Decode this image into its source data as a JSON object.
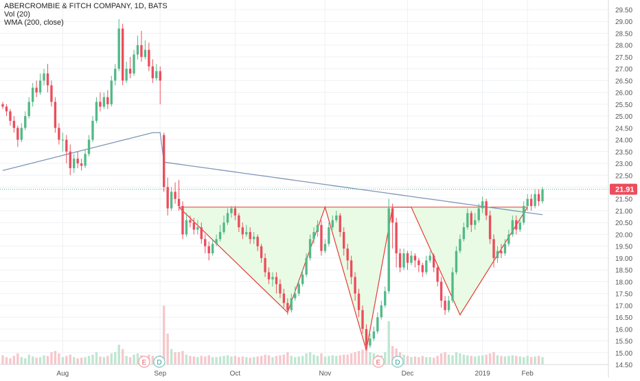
{
  "legend": {
    "title": "ABERCROMBIE & FITCH COMPANY, 1D, BATS",
    "vol": "Vol (20)",
    "wma": "WMA (200, close)"
  },
  "colors": {
    "up": "#53b987",
    "down": "#eb4d5c",
    "wma": "#7f95b8",
    "pattern_line": "#e53935",
    "pattern_fill": "#e9fbe4",
    "price_line": "#3cb8a8",
    "price_badge": "#eb4d5c",
    "grid": "#eef0f3",
    "axis_text": "#555555"
  },
  "price_label": "21.91",
  "chart_data": {
    "type": "candlestick",
    "title": "ABERCROMBIE & FITCH COMPANY, 1D, BATS",
    "x_labels": [
      "Aug",
      "Sep",
      "Oct",
      "Nov",
      "Dec",
      "2019",
      "Feb"
    ],
    "y_ticks": [
      "29.50",
      "29.00",
      "28.50",
      "28.00",
      "27.50",
      "27.00",
      "26.50",
      "26.00",
      "25.50",
      "25.00",
      "24.50",
      "24.00",
      "23.50",
      "23.00",
      "22.50",
      "22.00",
      "21.50",
      "21.00",
      "20.50",
      "20.00",
      "19.50",
      "19.00",
      "18.50",
      "18.00",
      "17.50",
      "17.00",
      "16.50",
      "16.00",
      "15.50",
      "15.00",
      "14.50"
    ],
    "ylim": [
      14.5,
      29.5
    ],
    "grid": true,
    "last_price": 21.91,
    "markers": [
      "E",
      "D",
      "E",
      "D"
    ],
    "candles": [
      [
        25.5,
        25.4,
        25.6,
        25.3
      ],
      [
        25.4,
        25.2,
        25.5,
        25.0
      ],
      [
        25.2,
        24.8,
        25.3,
        24.6
      ],
      [
        24.8,
        24.5,
        25.0,
        24.3
      ],
      [
        24.5,
        24.0,
        24.6,
        23.7
      ],
      [
        24.0,
        24.5,
        24.7,
        23.9
      ],
      [
        24.5,
        25.0,
        25.2,
        24.4
      ],
      [
        25.0,
        25.6,
        25.8,
        24.9
      ],
      [
        25.6,
        26.2,
        26.4,
        25.4
      ],
      [
        26.2,
        26.0,
        26.5,
        25.8
      ],
      [
        26.0,
        26.5,
        26.8,
        25.9
      ],
      [
        26.5,
        26.8,
        27.0,
        26.3
      ],
      [
        26.8,
        26.3,
        27.2,
        26.0
      ],
      [
        26.3,
        25.6,
        26.5,
        25.4
      ],
      [
        25.6,
        24.5,
        25.8,
        24.3
      ],
      [
        24.5,
        24.0,
        24.7,
        23.8
      ],
      [
        24.0,
        24.0,
        24.3,
        23.5
      ],
      [
        24.0,
        23.5,
        24.2,
        23.0
      ],
      [
        23.5,
        22.8,
        23.8,
        22.5
      ],
      [
        22.8,
        23.2,
        23.4,
        22.6
      ],
      [
        23.2,
        23.0,
        23.5,
        22.8
      ],
      [
        23.0,
        22.9,
        23.2,
        22.7
      ],
      [
        22.9,
        23.4,
        23.6,
        22.8
      ],
      [
        23.4,
        24.0,
        24.2,
        23.3
      ],
      [
        24.0,
        24.8,
        25.0,
        23.9
      ],
      [
        24.8,
        25.6,
        25.8,
        24.7
      ],
      [
        25.6,
        25.4,
        26.0,
        25.2
      ],
      [
        25.4,
        25.8,
        26.0,
        25.3
      ],
      [
        25.8,
        25.5,
        26.1,
        25.3
      ],
      [
        25.5,
        26.5,
        26.7,
        25.4
      ],
      [
        26.5,
        27.0,
        27.2,
        26.3
      ],
      [
        27.0,
        28.7,
        29.1,
        26.9
      ],
      [
        28.7,
        26.5,
        28.9,
        26.3
      ],
      [
        26.5,
        27.0,
        27.3,
        26.4
      ],
      [
        27.0,
        26.8,
        27.5,
        26.6
      ],
      [
        26.8,
        27.6,
        27.8,
        26.7
      ],
      [
        27.6,
        28.0,
        28.4,
        27.4
      ],
      [
        28.0,
        27.5,
        28.6,
        27.3
      ],
      [
        27.5,
        27.8,
        28.2,
        27.4
      ],
      [
        27.8,
        27.1,
        28.1,
        26.9
      ],
      [
        27.1,
        26.6,
        27.4,
        26.4
      ],
      [
        26.6,
        26.9,
        27.2,
        26.5
      ],
      [
        26.9,
        26.5,
        27.1,
        25.5
      ],
      [
        24.2,
        22.0,
        24.3,
        21.8
      ],
      [
        22.0,
        21.1,
        22.4,
        20.8
      ],
      [
        21.1,
        21.8,
        22.0,
        21.0
      ],
      [
        21.8,
        21.5,
        22.2,
        21.3
      ],
      [
        21.5,
        21.2,
        22.3,
        21.0
      ],
      [
        21.2,
        20.0,
        21.4,
        19.8
      ],
      [
        20.0,
        20.6,
        20.9,
        19.9
      ],
      [
        20.6,
        20.5,
        20.8,
        20.3
      ],
      [
        20.5,
        20.2,
        20.7,
        20.0
      ],
      [
        20.2,
        20.3,
        20.6,
        20.0
      ],
      [
        20.3,
        19.8,
        20.5,
        19.6
      ],
      [
        19.8,
        19.5,
        20.0,
        19.2
      ],
      [
        19.5,
        19.2,
        19.7,
        18.9
      ],
      [
        19.2,
        19.6,
        19.8,
        19.1
      ],
      [
        19.6,
        19.8,
        20.0,
        19.5
      ],
      [
        19.8,
        20.1,
        20.4,
        19.7
      ],
      [
        20.1,
        20.5,
        20.8,
        20.0
      ],
      [
        20.5,
        20.9,
        21.1,
        20.4
      ],
      [
        20.9,
        21.1,
        21.2,
        20.7
      ],
      [
        21.1,
        20.8,
        21.2,
        20.6
      ],
      [
        20.8,
        20.3,
        20.9,
        20.1
      ],
      [
        20.3,
        20.0,
        20.5,
        19.8
      ],
      [
        20.0,
        20.1,
        20.4,
        19.9
      ],
      [
        20.1,
        19.8,
        20.3,
        19.6
      ],
      [
        19.8,
        19.9,
        20.1,
        19.6
      ],
      [
        19.9,
        19.5,
        20.0,
        19.3
      ],
      [
        19.5,
        19.0,
        19.6,
        18.8
      ],
      [
        19.0,
        18.4,
        19.2,
        18.2
      ],
      [
        18.4,
        18.1,
        18.6,
        17.9
      ],
      [
        18.1,
        18.2,
        18.4,
        17.8
      ],
      [
        18.2,
        17.9,
        18.4,
        17.5
      ],
      [
        17.9,
        17.5,
        18.1,
        17.3
      ],
      [
        17.5,
        17.1,
        17.7,
        16.9
      ],
      [
        17.1,
        16.8,
        17.3,
        16.6
      ],
      [
        16.8,
        17.3,
        17.5,
        16.7
      ],
      [
        17.3,
        17.5,
        17.8,
        17.2
      ],
      [
        17.5,
        17.9,
        18.1,
        17.4
      ],
      [
        17.9,
        18.3,
        18.5,
        17.8
      ],
      [
        18.3,
        19.0,
        19.2,
        18.2
      ],
      [
        19.0,
        19.8,
        20.0,
        18.9
      ],
      [
        19.8,
        20.1,
        20.3,
        19.6
      ],
      [
        20.1,
        20.4,
        20.6,
        19.9
      ],
      [
        20.4,
        19.3,
        20.6,
        19.1
      ],
      [
        19.3,
        19.6,
        19.8,
        19.2
      ],
      [
        19.6,
        20.3,
        20.5,
        19.5
      ],
      [
        20.3,
        20.6,
        20.8,
        20.2
      ],
      [
        20.6,
        20.8,
        21.0,
        20.5
      ],
      [
        20.8,
        20.1,
        20.9,
        19.9
      ],
      [
        20.1,
        19.4,
        20.3,
        19.1
      ],
      [
        19.4,
        18.9,
        19.6,
        18.5
      ],
      [
        18.9,
        18.2,
        19.1,
        17.9
      ],
      [
        18.2,
        17.5,
        18.4,
        17.2
      ],
      [
        17.5,
        16.8,
        17.7,
        16.5
      ],
      [
        16.8,
        16.0,
        17.0,
        15.8
      ],
      [
        16.0,
        15.3,
        16.2,
        15.1
      ],
      [
        15.3,
        15.6,
        15.8,
        15.2
      ],
      [
        15.6,
        15.9,
        16.1,
        15.5
      ],
      [
        15.9,
        16.5,
        16.7,
        15.8
      ],
      [
        16.5,
        17.0,
        17.2,
        16.4
      ],
      [
        17.0,
        17.6,
        17.8,
        16.9
      ],
      [
        17.6,
        21.1,
        21.5,
        17.5
      ],
      [
        21.1,
        20.5,
        21.3,
        19.4
      ],
      [
        20.5,
        19.2,
        20.7,
        18.6
      ],
      [
        19.2,
        18.6,
        19.4,
        18.4
      ],
      [
        18.6,
        19.2,
        19.4,
        18.5
      ],
      [
        19.2,
        18.8,
        19.3,
        18.5
      ],
      [
        18.8,
        19.1,
        19.3,
        18.7
      ],
      [
        19.1,
        18.9,
        19.2,
        18.6
      ],
      [
        18.9,
        18.7,
        19.0,
        18.4
      ],
      [
        18.7,
        18.4,
        18.8,
        18.2
      ],
      [
        18.4,
        18.9,
        19.1,
        18.3
      ],
      [
        18.9,
        19.1,
        19.3,
        18.8
      ],
      [
        19.1,
        18.6,
        19.2,
        18.4
      ],
      [
        18.6,
        18.0,
        18.7,
        17.8
      ],
      [
        18.0,
        17.2,
        18.2,
        16.9
      ],
      [
        17.2,
        16.8,
        17.4,
        16.6
      ],
      [
        16.8,
        17.2,
        17.4,
        16.7
      ],
      [
        17.2,
        18.4,
        18.6,
        17.1
      ],
      [
        18.4,
        19.3,
        19.5,
        18.3
      ],
      [
        19.3,
        19.8,
        20.0,
        19.2
      ],
      [
        19.8,
        20.3,
        20.5,
        19.7
      ],
      [
        20.3,
        20.9,
        21.1,
        20.2
      ],
      [
        20.9,
        20.4,
        21.0,
        20.1
      ],
      [
        20.4,
        20.6,
        20.9,
        20.2
      ],
      [
        20.6,
        21.1,
        21.3,
        20.5
      ],
      [
        21.1,
        21.4,
        21.6,
        20.9
      ],
      [
        21.4,
        20.8,
        21.5,
        20.6
      ],
      [
        20.8,
        19.8,
        21.0,
        19.6
      ],
      [
        19.8,
        19.0,
        20.0,
        18.6
      ],
      [
        19.0,
        19.3,
        19.5,
        18.8
      ],
      [
        19.3,
        19.2,
        19.6,
        19.0
      ],
      [
        19.2,
        19.6,
        19.8,
        19.1
      ],
      [
        19.6,
        20.0,
        20.2,
        19.5
      ],
      [
        20.0,
        20.6,
        20.8,
        19.9
      ],
      [
        20.6,
        20.2,
        20.8,
        20.0
      ],
      [
        20.2,
        20.5,
        20.7,
        20.1
      ],
      [
        20.5,
        21.2,
        21.4,
        20.4
      ],
      [
        21.2,
        21.5,
        21.7,
        21.0
      ],
      [
        21.5,
        21.2,
        21.7,
        21.0
      ],
      [
        21.2,
        21.7,
        21.9,
        21.1
      ],
      [
        21.7,
        21.4,
        21.9,
        21.2
      ],
      [
        21.4,
        21.9,
        22.0,
        21.3
      ]
    ],
    "volume": [
      0.15,
      0.12,
      0.1,
      0.14,
      0.18,
      0.12,
      0.1,
      0.16,
      0.13,
      0.11,
      0.12,
      0.15,
      0.14,
      0.2,
      0.22,
      0.18,
      0.12,
      0.14,
      0.16,
      0.12,
      0.1,
      0.11,
      0.12,
      0.14,
      0.16,
      0.2,
      0.13,
      0.12,
      0.14,
      0.18,
      0.2,
      0.32,
      0.25,
      0.14,
      0.12,
      0.16,
      0.18,
      0.15,
      0.13,
      0.16,
      0.14,
      0.12,
      0.15,
      0.95,
      0.5,
      0.25,
      0.2,
      0.2,
      0.22,
      0.16,
      0.14,
      0.13,
      0.12,
      0.14,
      0.13,
      0.15,
      0.12,
      0.12,
      0.13,
      0.14,
      0.15,
      0.13,
      0.14,
      0.12,
      0.13,
      0.12,
      0.11,
      0.12,
      0.13,
      0.14,
      0.16,
      0.15,
      0.12,
      0.14,
      0.15,
      0.16,
      0.2,
      0.14,
      0.12,
      0.13,
      0.14,
      0.18,
      0.2,
      0.16,
      0.14,
      0.18,
      0.13,
      0.14,
      0.15,
      0.14,
      0.15,
      0.16,
      0.16,
      0.18,
      0.2,
      0.22,
      0.24,
      0.26,
      0.2,
      0.18,
      0.16,
      0.15,
      0.2,
      0.7,
      0.3,
      0.26,
      0.2,
      0.16,
      0.14,
      0.12,
      0.13,
      0.12,
      0.14,
      0.12,
      0.12,
      0.11,
      0.14,
      0.18,
      0.2,
      0.16,
      0.15,
      0.2,
      0.18,
      0.16,
      0.15,
      0.14,
      0.13,
      0.14,
      0.15,
      0.16,
      0.18,
      0.2,
      0.15,
      0.14,
      0.13,
      0.14,
      0.15,
      0.14,
      0.13,
      0.12,
      0.14,
      0.12,
      0.13,
      0.14,
      0.12
    ]
  }
}
